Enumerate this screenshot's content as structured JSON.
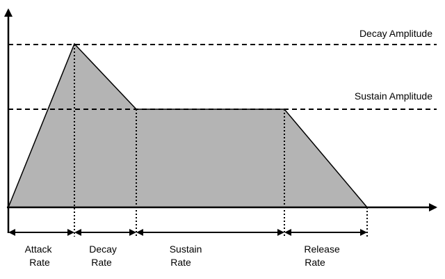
{
  "levels": {
    "decay_amplitude": "Decay Amplitude",
    "sustain_amplitude": "Sustain Amplitude"
  },
  "phases": {
    "attack": [
      "Attack",
      "Rate"
    ],
    "decay": [
      "Decay",
      "Rate"
    ],
    "sustain": [
      "Sustain",
      "Rate"
    ],
    "release": [
      "Release",
      "Rate"
    ]
  },
  "colors": {
    "envelope_fill": "#b4b4b4",
    "line": "#000000"
  }
}
